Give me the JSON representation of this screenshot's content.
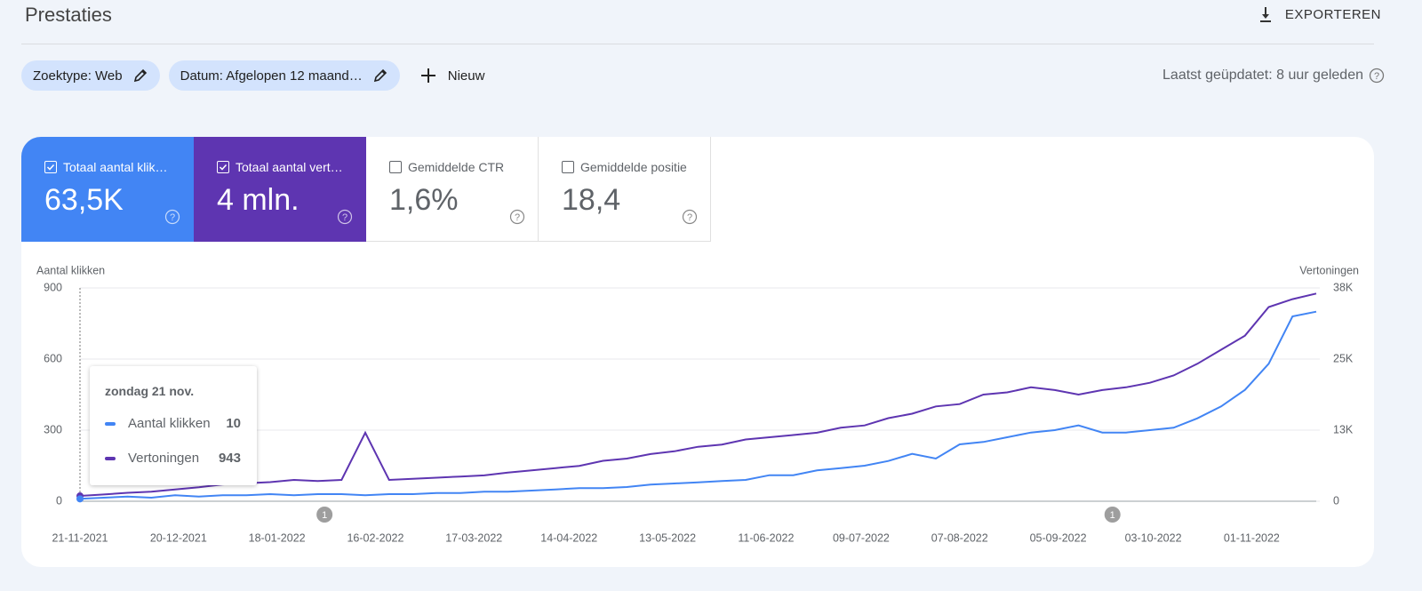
{
  "header": {
    "title": "Prestaties",
    "export": "EXPORTEREN"
  },
  "filters": [
    "Zoektype: Web",
    "Datum: Afgelopen 12 maand…"
  ],
  "new_filter": "Nieuw",
  "updated": "Laatst geüpdatet: 8 uur geleden",
  "metrics": [
    {
      "label": "Totaal aantal klik…",
      "value": "63,5K",
      "selected": true,
      "color": "#4285f4"
    },
    {
      "label": "Totaal aantal vert…",
      "value": "4 mln.",
      "selected": true,
      "color": "#5e35b1"
    },
    {
      "label": "Gemiddelde CTR",
      "value": "1,6%",
      "selected": false
    },
    {
      "label": "Gemiddelde positie",
      "value": "18,4",
      "selected": false
    }
  ],
  "tooltip": {
    "title": "zondag 21 nov."
  },
  "chart_data": {
    "type": "line",
    "y_label": "Aantal klikken",
    "y2_label": "Vertoningen",
    "x": [
      "21-11-2021",
      "28-11-2021",
      "05-12-2021",
      "12-12-2021",
      "19-12-2021",
      "26-12-2021",
      "02-01-2022",
      "09-01-2022",
      "16-01-2022",
      "23-01-2022",
      "30-01-2022",
      "06-02-2022",
      "13-02-2022",
      "20-02-2022",
      "27-02-2022",
      "06-03-2022",
      "13-03-2022",
      "20-03-2022",
      "27-03-2022",
      "03-04-2022",
      "10-04-2022",
      "17-04-2022",
      "24-04-2022",
      "01-05-2022",
      "08-05-2022",
      "15-05-2022",
      "22-05-2022",
      "29-05-2022",
      "05-06-2022",
      "12-06-2022",
      "19-06-2022",
      "26-06-2022",
      "03-07-2022",
      "10-07-2022",
      "17-07-2022",
      "24-07-2022",
      "31-07-2022",
      "07-08-2022",
      "14-08-2022",
      "21-08-2022",
      "28-08-2022",
      "04-09-2022",
      "11-09-2022",
      "18-09-2022",
      "25-09-2022",
      "02-10-2022",
      "09-10-2022",
      "16-10-2022",
      "23-10-2022",
      "30-10-2022",
      "06-11-2022",
      "13-11-2022",
      "20-11-2022"
    ],
    "xlim": [
      "21-11-2021",
      "20-11-2022"
    ],
    "xticks": [
      "21-11-2021",
      "20-12-2021",
      "18-01-2022",
      "16-02-2022",
      "17-03-2022",
      "14-04-2022",
      "13-05-2022",
      "11-06-2022",
      "09-07-2022",
      "07-08-2022",
      "05-09-2022",
      "03-10-2022",
      "01-11-2022"
    ],
    "ylim": [
      0,
      900
    ],
    "yticks": [
      0,
      300,
      600,
      900
    ],
    "y2lim": [
      0,
      38000
    ],
    "y2ticks": [
      0,
      {
        "value": 12667,
        "label": "13K"
      },
      {
        "value": 25333,
        "label": "25K"
      },
      {
        "value": 38000,
        "label": "38K"
      }
    ],
    "grid": true,
    "series": [
      {
        "name": "Vertoningen",
        "color": "#5e35b1",
        "axis": "y2",
        "values": [
          943,
          1200,
          1500,
          1700,
          2100,
          2500,
          3000,
          3200,
          3400,
          3800,
          3600,
          3800,
          12200,
          3800,
          4000,
          4200,
          4400,
          4600,
          5100,
          5500,
          5900,
          6300,
          7200,
          7600,
          8400,
          8900,
          9700,
          10100,
          11000,
          11400,
          11800,
          12200,
          13100,
          13500,
          14800,
          15600,
          16900,
          17300,
          19000,
          19400,
          20300,
          19800,
          19000,
          19800,
          20300,
          21100,
          22400,
          24500,
          27000,
          29500,
          34600,
          36000,
          37000
        ]
      },
      {
        "name": "Aantal klikken",
        "color": "#4285f4",
        "values": [
          10,
          15,
          20,
          15,
          25,
          20,
          25,
          25,
          30,
          25,
          30,
          30,
          25,
          30,
          30,
          35,
          35,
          40,
          40,
          45,
          50,
          55,
          55,
          60,
          70,
          75,
          80,
          85,
          90,
          110,
          110,
          130,
          140,
          150,
          170,
          200,
          180,
          240,
          250,
          270,
          290,
          300,
          320,
          290,
          290,
          300,
          310,
          350,
          400,
          470,
          580,
          780,
          800
        ]
      }
    ],
    "annotations": [
      {
        "x": "01-02-2022",
        "label": "1"
      },
      {
        "x": "21-09-2022",
        "label": "1"
      }
    ]
  }
}
